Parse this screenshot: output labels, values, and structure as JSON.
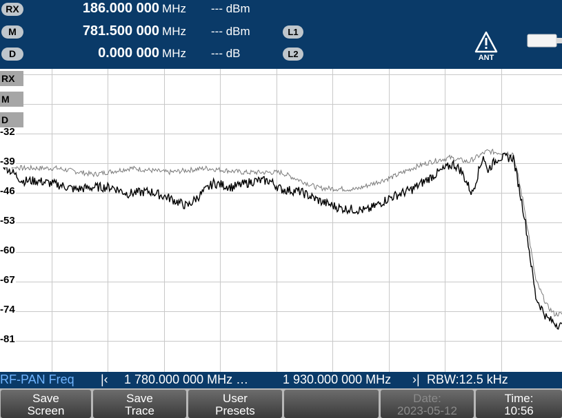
{
  "markers": [
    {
      "badge": "RX",
      "freq_value": "186.000 000",
      "freq_unit": "MHz",
      "level": "--- dBm",
      "line_badge": ""
    },
    {
      "badge": "M",
      "freq_value": "781.500 000",
      "freq_unit": "MHz",
      "level": "--- dBm",
      "line_badge": "L1"
    },
    {
      "badge": "D",
      "freq_value": "0.000 000",
      "freq_unit": "MHz",
      "level": "--- dB",
      "line_badge": "L2"
    }
  ],
  "status_icons": {
    "antenna_warning": "warning-triangle-icon",
    "antenna_label": "ANT",
    "battery": "battery-icon"
  },
  "side_tags": [
    "RX",
    "M",
    "D"
  ],
  "chart_data": {
    "type": "line",
    "ylim": [
      -85,
      -25
    ],
    "yticks": [
      "-32",
      "-39",
      "-46",
      "-53",
      "-60",
      "-67",
      "-74",
      "-81"
    ],
    "ytick_values": [
      -32,
      -39,
      -46,
      -53,
      -60,
      -67,
      -74,
      -81
    ],
    "xlim": [
      1780,
      1930
    ],
    "x_unit": "MHz",
    "grid": true,
    "series": [
      {
        "color": "#7a7a7a",
        "x": [
          1780,
          1786,
          1795,
          1805,
          1815,
          1825,
          1835,
          1845,
          1855,
          1865,
          1875,
          1885,
          1890,
          1895,
          1900,
          1905,
          1910,
          1913,
          1917,
          1920,
          1923,
          1926,
          1928,
          1930
        ],
        "y": [
          -39.5,
          -40.5,
          -40.5,
          -42,
          -40.5,
          -41.5,
          -40.5,
          -41.5,
          -41.5,
          -45.2,
          -45.5,
          -42.5,
          -40.5,
          -39,
          -38,
          -39,
          -36.5,
          -36.8,
          -37,
          -50,
          -67,
          -73,
          -75,
          -75
        ]
      },
      {
        "color": "#000000",
        "x": [
          1780,
          1786,
          1790,
          1796,
          1800,
          1805,
          1810,
          1814,
          1820,
          1825,
          1830,
          1837,
          1842,
          1848,
          1852,
          1855,
          1860,
          1866,
          1871,
          1878,
          1884,
          1890,
          1897,
          1901,
          1903,
          1906,
          1909,
          1910,
          1913,
          1917,
          1920,
          1923,
          1926,
          1930
        ],
        "y": [
          -39,
          -43.5,
          -43.5,
          -44.5,
          -45.5,
          -45,
          -45,
          -46.5,
          -46,
          -47.5,
          -49.5,
          -44,
          -45,
          -43.5,
          -43.5,
          -45.5,
          -46,
          -48.5,
          -50,
          -50.5,
          -47.5,
          -45.5,
          -41.5,
          -39.5,
          -41,
          -46.5,
          -37.5,
          -41,
          -38,
          -38,
          -52,
          -71,
          -76,
          -78
        ]
      }
    ]
  },
  "status_bar": {
    "mode": "RF-PAN Freq",
    "start_marker": "|‹",
    "start_freq": "1 780.000 000 MHz …",
    "stop_freq": "1 930.000 000 MHz",
    "stop_marker": "›|",
    "rbw": "RBW:12.5 kHz"
  },
  "softkeys": [
    {
      "line1": "Save",
      "line2": "Screen",
      "enabled": true
    },
    {
      "line1": "Save",
      "line2": "Trace",
      "enabled": true
    },
    {
      "line1": "User",
      "line2": "Presets",
      "enabled": true
    },
    {
      "line1": "",
      "line2": "",
      "enabled": true
    },
    {
      "line1": "Date:",
      "line2": "2023-05-12",
      "enabled": false
    },
    {
      "line1": "Time:",
      "line2": "10:56",
      "enabled": true
    }
  ]
}
